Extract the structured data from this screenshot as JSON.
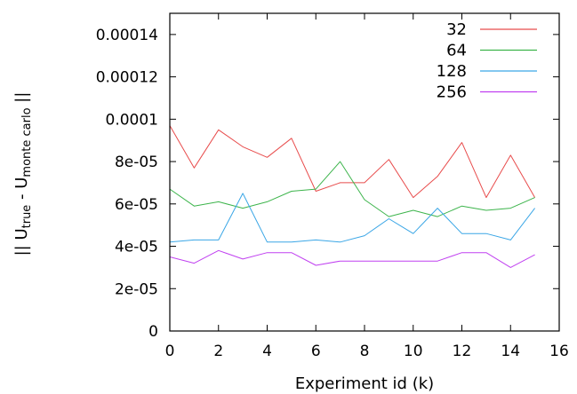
{
  "chart_data": {
    "type": "line",
    "title": "",
    "xlabel": "Experiment id (k)",
    "ylabel_parts": [
      "|| U",
      "true",
      " - U",
      "monte carlo",
      " ||"
    ],
    "xlim": [
      0,
      16
    ],
    "ylim": [
      0,
      0.00015
    ],
    "xticks": [
      0,
      2,
      4,
      6,
      8,
      10,
      12,
      14,
      16
    ],
    "xtick_labels": [
      "0",
      "2",
      "4",
      "6",
      "8",
      "10",
      "12",
      "14",
      "16"
    ],
    "yticks": [
      0,
      2e-05,
      4e-05,
      6e-05,
      8e-05,
      0.0001,
      0.00012,
      0.00014
    ],
    "ytick_labels": [
      "0",
      "2e-05",
      "4e-05",
      "6e-05",
      "8e-05",
      "0.0001",
      "0.00012",
      "0.00014"
    ],
    "grid": false,
    "legend_position": "top-right",
    "x": [
      0,
      1,
      2,
      3,
      4,
      5,
      6,
      7,
      8,
      9,
      10,
      11,
      12,
      13,
      14,
      15
    ],
    "series": [
      {
        "name": "32",
        "color": "#e84c4c",
        "values": [
          9.7e-05,
          7.7e-05,
          9.5e-05,
          8.7e-05,
          8.2e-05,
          9.1e-05,
          6.6e-05,
          7e-05,
          7e-05,
          8.1e-05,
          6.3e-05,
          7.3e-05,
          8.9e-05,
          6.3e-05,
          8.3e-05,
          6.3e-05
        ]
      },
      {
        "name": "64",
        "color": "#3cb44b",
        "values": [
          6.7e-05,
          5.9e-05,
          6.1e-05,
          5.8e-05,
          6.1e-05,
          6.6e-05,
          6.7e-05,
          8e-05,
          6.2e-05,
          5.4e-05,
          5.7e-05,
          5.4e-05,
          5.9e-05,
          5.7e-05,
          5.8e-05,
          6.3e-05
        ]
      },
      {
        "name": "128",
        "color": "#3aa6e6",
        "values": [
          4.2e-05,
          4.3e-05,
          4.3e-05,
          6.5e-05,
          4.2e-05,
          4.2e-05,
          4.3e-05,
          4.2e-05,
          4.5e-05,
          5.3e-05,
          4.6e-05,
          5.8e-05,
          4.6e-05,
          4.6e-05,
          4.3e-05,
          5.8e-05
        ]
      },
      {
        "name": "256",
        "color": "#c040f0",
        "values": [
          3.5e-05,
          3.2e-05,
          3.8e-05,
          3.4e-05,
          3.7e-05,
          3.7e-05,
          3.1e-05,
          3.3e-05,
          3.3e-05,
          3.3e-05,
          3.3e-05,
          3.3e-05,
          3.7e-05,
          3.7e-05,
          3e-05,
          3.6e-05
        ]
      }
    ]
  }
}
